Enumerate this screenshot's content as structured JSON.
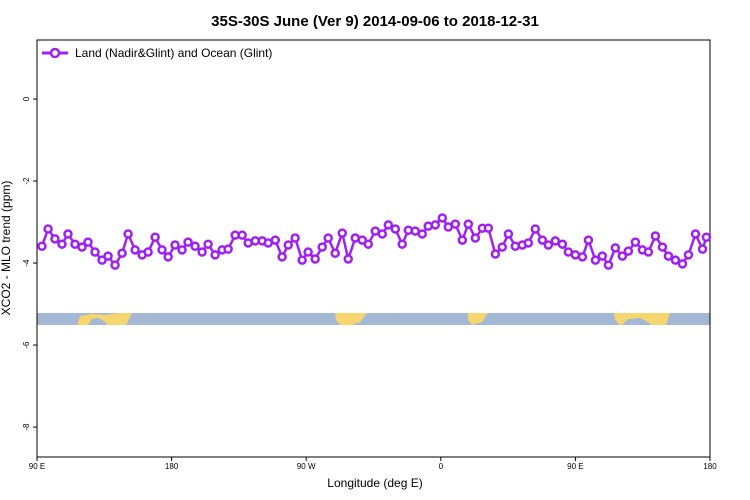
{
  "chart_data": {
    "type": "line",
    "title": "35S-30S June (Ver 9)   2014-09-06 to 2018-12-31",
    "x_label": "Longitude (deg E)",
    "y_label": "XCO2 - MLO trend (ppm)",
    "xlim": [
      90,
      540
    ],
    "xticks": [
      {
        "value": 90,
        "label": "90 E"
      },
      180,
      {
        "value": 270,
        "label": "90 W"
      },
      {
        "value": 360,
        "label": "0"
      },
      {
        "value": 450,
        "label": "90 E"
      },
      {
        "value": 540,
        "label": "180"
      }
    ],
    "ylim": [
      -8.73,
      1.44
    ],
    "yticks": [
      0,
      -2,
      -4,
      -6,
      -8
    ],
    "legend": "top-left",
    "x": [
      93.3,
      97.4,
      102.0,
      106.7,
      110.7,
      115.4,
      120.1,
      124.1,
      128.8,
      133.5,
      137.5,
      142.2,
      146.9,
      150.9,
      155.6,
      160.3,
      164.3,
      169.0,
      173.6,
      177.7,
      182.3,
      187.0,
      191.0,
      195.7,
      200.4,
      204.4,
      209.1,
      213.8,
      217.8,
      222.5,
      227.2,
      231.2,
      235.9,
      240.6,
      244.6,
      249.3,
      253.9,
      258.0,
      262.6,
      267.3,
      271.3,
      276.0,
      280.7,
      284.7,
      289.4,
      294.1,
      298.1,
      302.8,
      307.5,
      311.5,
      316.2,
      320.9,
      324.9,
      329.6,
      334.2,
      338.3,
      342.9,
      347.6,
      351.6,
      356.3,
      361.0,
      365.0,
      369.7,
      374.4,
      378.4,
      383.1,
      387.8,
      391.8,
      396.5,
      401.1,
      405.2,
      409.8,
      414.5,
      418.5,
      423.2,
      427.9,
      431.9,
      436.6,
      441.3,
      445.3,
      450.0,
      454.7,
      458.7,
      463.4,
      468.0,
      472.1,
      476.7,
      481.4,
      485.4,
      490.1,
      494.8,
      498.8,
      503.5,
      508.2,
      512.2,
      516.9,
      521.6,
      525.6,
      530.3,
      535.0,
      537.6
    ],
    "series": [
      {
        "name": "Land (Nadir&Glint) and Ocean (Glint)",
        "color": "#a020f0",
        "values": [
          -3.59,
          -3.17,
          -3.41,
          -3.54,
          -3.29,
          -3.54,
          -3.61,
          -3.49,
          -3.73,
          -3.93,
          -3.83,
          -4.05,
          -3.76,
          -3.29,
          -3.68,
          -3.8,
          -3.73,
          -3.37,
          -3.68,
          -3.85,
          -3.56,
          -3.68,
          -3.49,
          -3.59,
          -3.73,
          -3.54,
          -3.8,
          -3.68,
          -3.66,
          -3.32,
          -3.32,
          -3.51,
          -3.46,
          -3.46,
          -3.51,
          -3.44,
          -3.85,
          -3.56,
          -3.39,
          -3.93,
          -3.73,
          -3.9,
          -3.61,
          -3.39,
          -3.76,
          -3.27,
          -3.9,
          -3.39,
          -3.44,
          -3.54,
          -3.22,
          -3.29,
          -3.07,
          -3.17,
          -3.54,
          -3.2,
          -3.22,
          -3.29,
          -3.1,
          -3.07,
          -2.9,
          -3.12,
          -3.05,
          -3.44,
          -3.05,
          -3.39,
          -3.15,
          -3.15,
          -3.78,
          -3.61,
          -3.29,
          -3.59,
          -3.56,
          -3.51,
          -3.17,
          -3.44,
          -3.56,
          -3.46,
          -3.54,
          -3.73,
          -3.8,
          -3.85,
          -3.44,
          -3.93,
          -3.83,
          -4.05,
          -3.63,
          -3.83,
          -3.71,
          -3.49,
          -3.68,
          -3.73,
          -3.34,
          -3.61,
          -3.83,
          -3.93,
          -4.02,
          -3.8,
          -3.29,
          -3.66,
          -3.37
        ]
      }
    ]
  }
}
